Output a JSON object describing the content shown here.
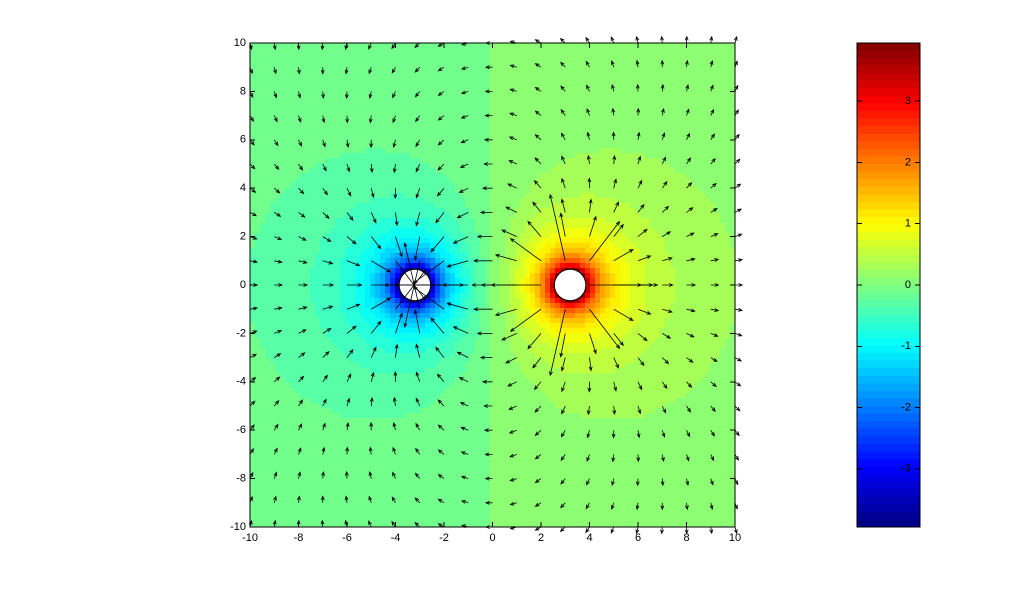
{
  "chart_data": {
    "type": "contour",
    "sources": [
      {
        "x": -3.2,
        "y": 0
      },
      {
        "x": 3.2,
        "y": 0
      }
    ],
    "xlim": [
      -10,
      10
    ],
    "xticks": [
      -10,
      -8,
      -6,
      -4,
      -2,
      0,
      2,
      4,
      6,
      8,
      10
    ],
    "ylim": [
      -10,
      10
    ],
    "yticks": [
      -10,
      -8,
      -6,
      -4,
      -2,
      0,
      2,
      4,
      6,
      8,
      10
    ],
    "clim": [
      -3.95,
      3.95
    ],
    "cticks": [
      -3,
      -2,
      -1,
      0,
      1,
      2,
      3
    ],
    "colormap": "jet",
    "quiver": true
  }
}
